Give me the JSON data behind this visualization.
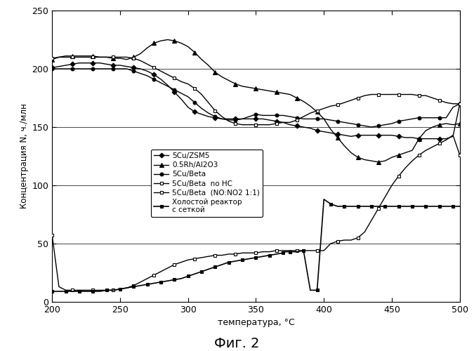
{
  "title": "Фиг. 2",
  "xlabel": "температура, °C",
  "ylabel": "Концентрация N, ч./млн",
  "xlim": [
    200,
    500
  ],
  "ylim": [
    0,
    250
  ],
  "xticks": [
    200,
    250,
    300,
    350,
    400,
    450,
    500
  ],
  "yticks": [
    0,
    50,
    100,
    150,
    200,
    250
  ],
  "series": [
    {
      "label": "5Cu/ZSM5",
      "marker": "D",
      "markersize": 3.5,
      "color": "#000000",
      "linewidth": 1.0,
      "linestyle": "-",
      "fillstyle": "full",
      "x": [
        200,
        205,
        210,
        215,
        220,
        225,
        230,
        235,
        240,
        245,
        250,
        255,
        260,
        265,
        270,
        275,
        280,
        285,
        290,
        295,
        300,
        305,
        310,
        315,
        320,
        325,
        330,
        335,
        340,
        345,
        350,
        355,
        360,
        365,
        370,
        375,
        380,
        385,
        390,
        395,
        400,
        405,
        410,
        415,
        420,
        425,
        430,
        435,
        440,
        445,
        450,
        455,
        460,
        465,
        470,
        475,
        480,
        485,
        490,
        495,
        500
      ],
      "y": [
        201,
        202,
        203,
        204,
        205,
        205,
        205,
        205,
        204,
        203,
        203,
        202,
        201,
        200,
        198,
        195,
        191,
        186,
        180,
        174,
        167,
        163,
        161,
        159,
        158,
        157,
        157,
        157,
        157,
        157,
        157,
        157,
        156,
        155,
        154,
        152,
        151,
        150,
        149,
        147,
        146,
        145,
        144,
        143,
        142,
        143,
        143,
        143,
        143,
        143,
        143,
        142,
        141,
        141,
        140,
        140,
        140,
        140,
        140,
        142,
        170
      ]
    },
    {
      "label": "0.5Rh/Al2O3",
      "marker": "^",
      "markersize": 4.5,
      "color": "#000000",
      "linewidth": 1.0,
      "linestyle": "-",
      "fillstyle": "full",
      "x": [
        200,
        205,
        210,
        215,
        220,
        225,
        230,
        235,
        240,
        245,
        250,
        255,
        260,
        265,
        270,
        275,
        280,
        285,
        290,
        295,
        300,
        305,
        310,
        315,
        320,
        325,
        330,
        335,
        340,
        345,
        350,
        355,
        360,
        365,
        370,
        375,
        380,
        385,
        390,
        395,
        400,
        405,
        410,
        415,
        420,
        425,
        430,
        435,
        440,
        445,
        450,
        455,
        460,
        465,
        470,
        475,
        480,
        485,
        490,
        495,
        500
      ],
      "y": [
        208,
        210,
        211,
        211,
        211,
        211,
        211,
        210,
        210,
        209,
        209,
        208,
        210,
        213,
        218,
        222,
        224,
        225,
        224,
        222,
        219,
        214,
        208,
        203,
        197,
        193,
        190,
        187,
        185,
        184,
        183,
        182,
        181,
        180,
        179,
        178,
        175,
        172,
        168,
        163,
        157,
        148,
        141,
        134,
        128,
        124,
        122,
        121,
        120,
        121,
        124,
        126,
        128,
        130,
        140,
        147,
        150,
        152,
        153,
        152,
        153
      ]
    },
    {
      "label": "5Cu/Beta",
      "marker": "o",
      "markersize": 3.5,
      "color": "#000000",
      "linewidth": 1.0,
      "linestyle": "-",
      "fillstyle": "full",
      "x": [
        200,
        205,
        210,
        215,
        220,
        225,
        230,
        235,
        240,
        245,
        250,
        255,
        260,
        265,
        270,
        275,
        280,
        285,
        290,
        295,
        300,
        305,
        310,
        315,
        320,
        325,
        330,
        335,
        340,
        345,
        350,
        355,
        360,
        365,
        370,
        375,
        380,
        385,
        390,
        395,
        400,
        405,
        410,
        415,
        420,
        425,
        430,
        435,
        440,
        445,
        450,
        455,
        460,
        465,
        470,
        475,
        480,
        485,
        490,
        495,
        500
      ],
      "y": [
        200,
        200,
        200,
        200,
        200,
        200,
        200,
        200,
        200,
        200,
        200,
        200,
        198,
        196,
        194,
        191,
        188,
        185,
        182,
        179,
        176,
        171,
        166,
        162,
        159,
        157,
        156,
        156,
        157,
        159,
        161,
        160,
        160,
        160,
        160,
        159,
        158,
        157,
        157,
        157,
        157,
        156,
        155,
        154,
        153,
        152,
        151,
        150,
        151,
        152,
        153,
        155,
        156,
        157,
        158,
        158,
        158,
        158,
        158,
        167,
        170
      ]
    },
    {
      "label": "5Cu/Beta  no HC",
      "marker": "s",
      "markersize": 3.5,
      "color": "#000000",
      "linewidth": 1.0,
      "linestyle": "-",
      "fillstyle": "none",
      "x": [
        200,
        205,
        210,
        215,
        220,
        225,
        230,
        235,
        240,
        245,
        250,
        255,
        260,
        265,
        270,
        275,
        280,
        285,
        290,
        295,
        300,
        305,
        310,
        315,
        320,
        325,
        330,
        335,
        340,
        345,
        350,
        355,
        360,
        365,
        370,
        375,
        380,
        385,
        390,
        395,
        400,
        405,
        410,
        415,
        420,
        425,
        430,
        435,
        440,
        445,
        450,
        455,
        460,
        465,
        470,
        475,
        480,
        485,
        490,
        495,
        500
      ],
      "y": [
        209,
        210,
        210,
        210,
        210,
        210,
        210,
        210,
        210,
        210,
        210,
        210,
        209,
        207,
        204,
        201,
        198,
        195,
        192,
        189,
        187,
        183,
        178,
        171,
        164,
        159,
        155,
        153,
        152,
        152,
        152,
        152,
        152,
        153,
        154,
        154,
        156,
        159,
        162,
        164,
        166,
        168,
        169,
        171,
        173,
        175,
        177,
        178,
        178,
        178,
        178,
        178,
        178,
        178,
        177,
        177,
        175,
        173,
        171,
        170,
        170
      ]
    },
    {
      "label": "5Cu/Beta  (NO:NO2 1:1)",
      "marker": "s",
      "markersize": 3.5,
      "color": "#000000",
      "linewidth": 1.0,
      "linestyle": "-",
      "fillstyle": "none",
      "x": [
        200,
        205,
        210,
        215,
        220,
        225,
        230,
        235,
        240,
        245,
        250,
        255,
        260,
        265,
        270,
        275,
        280,
        285,
        290,
        295,
        300,
        305,
        310,
        315,
        320,
        325,
        330,
        335,
        340,
        345,
        350,
        355,
        360,
        365,
        370,
        375,
        380,
        385,
        390,
        395,
        400,
        405,
        410,
        415,
        420,
        425,
        430,
        435,
        440,
        445,
        450,
        455,
        460,
        465,
        470,
        475,
        480,
        485,
        490,
        495,
        500
      ],
      "y": [
        57,
        13,
        10,
        10,
        10,
        10,
        10,
        10,
        10,
        10,
        11,
        12,
        14,
        17,
        20,
        23,
        26,
        29,
        32,
        34,
        36,
        37,
        38,
        39,
        40,
        40,
        41,
        41,
        42,
        42,
        42,
        43,
        43,
        44,
        44,
        44,
        44,
        44,
        44,
        44,
        44,
        50,
        52,
        53,
        53,
        55,
        60,
        70,
        80,
        90,
        100,
        108,
        115,
        121,
        126,
        130,
        133,
        136,
        139,
        143,
        126
      ]
    },
    {
      "label": "Холостой реактор\nс сеткой",
      "marker": "s",
      "markersize": 3.0,
      "color": "#000000",
      "linewidth": 1.2,
      "linestyle": "-",
      "fillstyle": "full",
      "x": [
        200,
        205,
        210,
        215,
        220,
        225,
        230,
        235,
        240,
        245,
        250,
        255,
        260,
        265,
        270,
        275,
        280,
        285,
        290,
        295,
        300,
        305,
        310,
        315,
        320,
        325,
        330,
        335,
        340,
        345,
        350,
        355,
        360,
        365,
        370,
        371,
        375,
        380,
        385,
        390,
        395,
        400,
        405,
        410,
        415,
        420,
        425,
        430,
        435,
        440,
        445,
        450,
        455,
        460,
        465,
        470,
        475,
        480,
        485,
        490,
        495,
        500
      ],
      "y": [
        9,
        9,
        9,
        9,
        9,
        9,
        9,
        9,
        10,
        10,
        11,
        12,
        13,
        14,
        15,
        16,
        17,
        18,
        19,
        20,
        22,
        24,
        26,
        28,
        30,
        32,
        34,
        35,
        36,
        37,
        38,
        39,
        40,
        41,
        42,
        43,
        43,
        43,
        44,
        10,
        10,
        88,
        84,
        82,
        82,
        82,
        82,
        82,
        82,
        82,
        82,
        82,
        82,
        82,
        82,
        82,
        82,
        82,
        82,
        82,
        82,
        82
      ]
    }
  ]
}
